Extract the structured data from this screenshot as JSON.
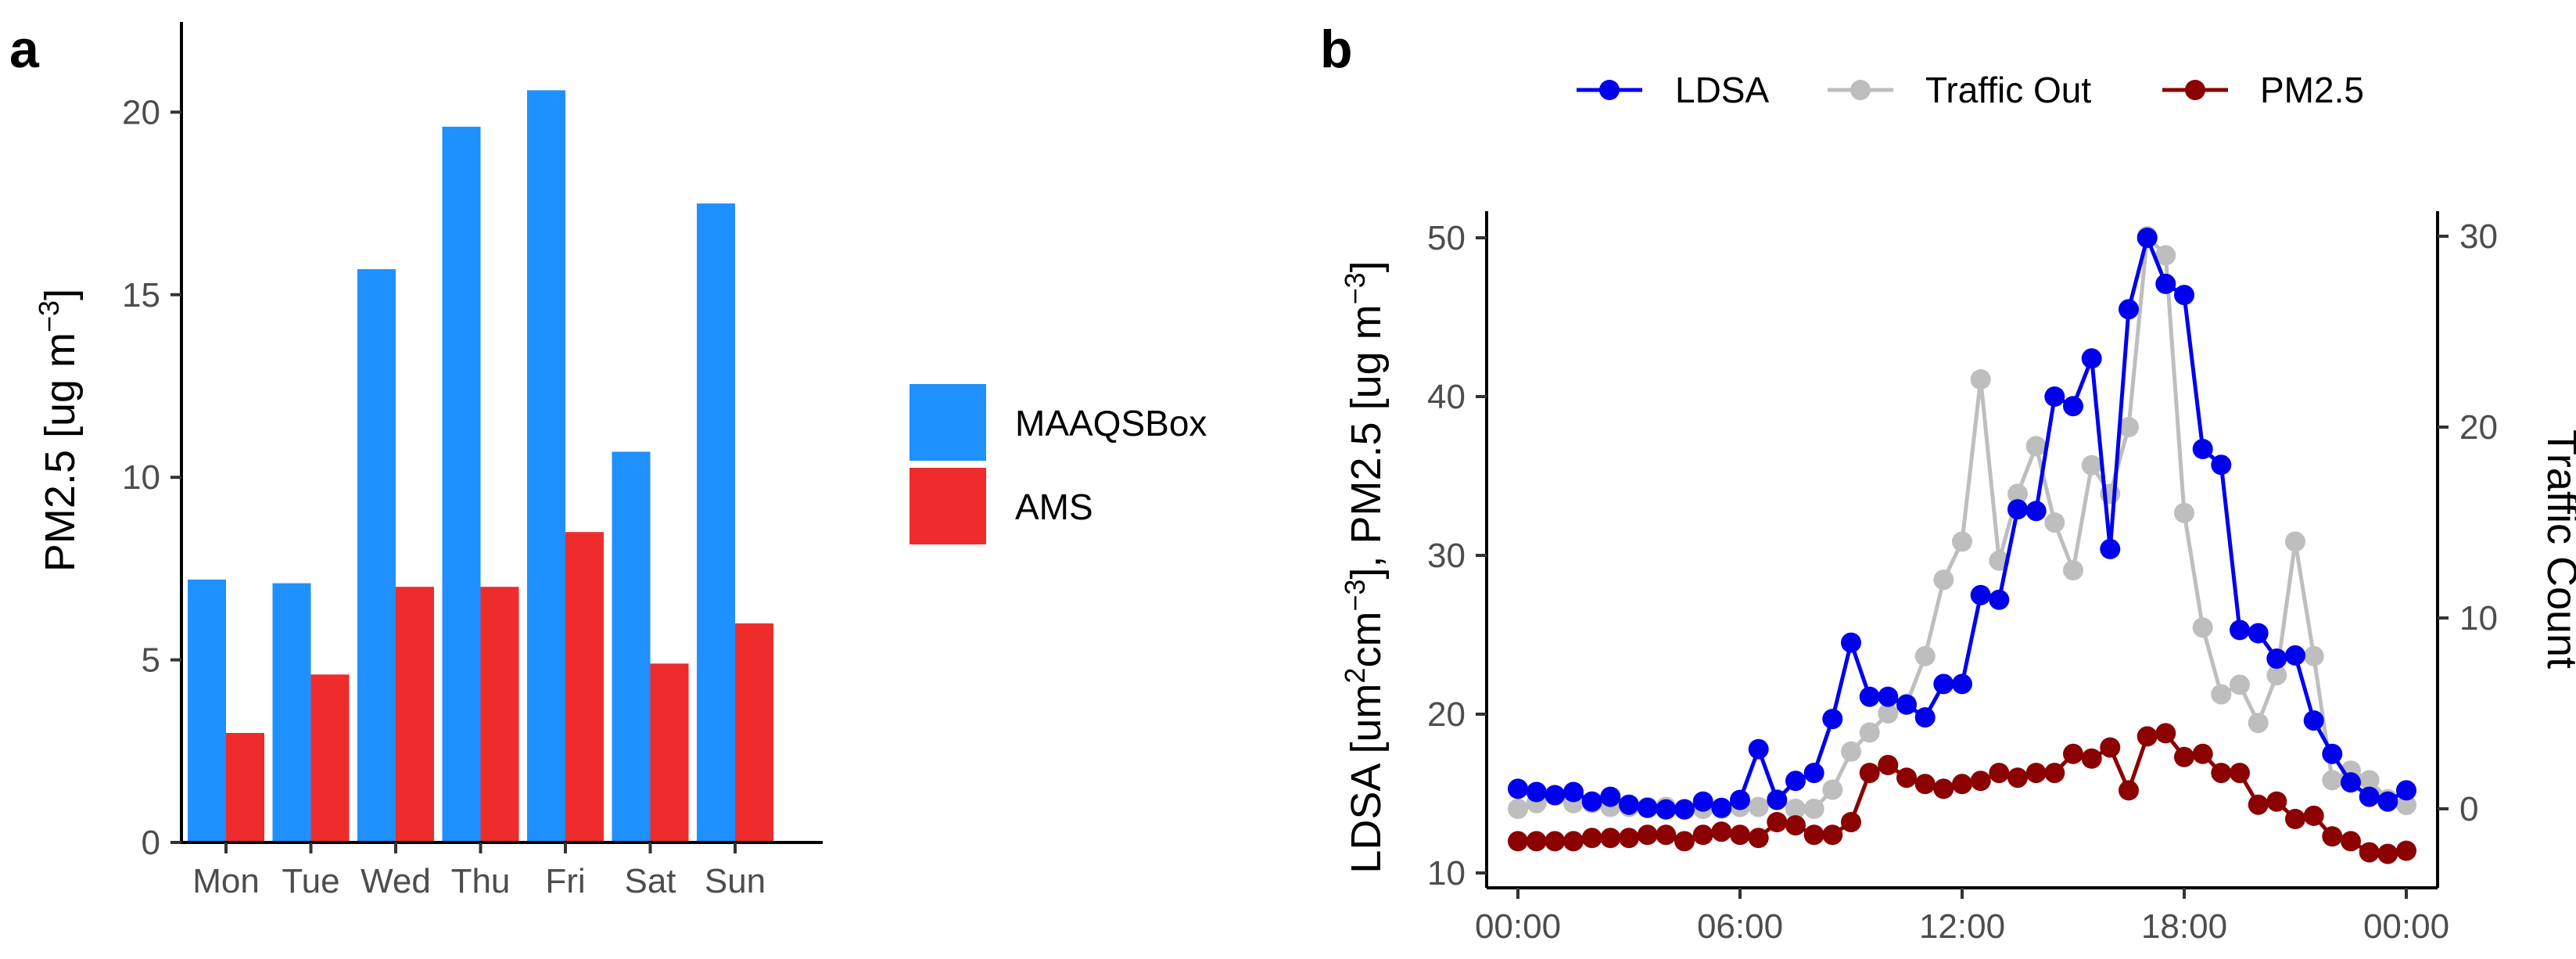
{
  "chart_data": [
    {
      "type": "bar",
      "panel_label": "a",
      "categories": [
        "Mon",
        "Tue",
        "Wed",
        "Thu",
        "Fri",
        "Sat",
        "Sun"
      ],
      "series": [
        {
          "name": "MAAQSBox",
          "color": "#1E90FF",
          "values": [
            7.2,
            7.1,
            15.7,
            19.6,
            20.6,
            10.7,
            17.5
          ]
        },
        {
          "name": "AMS",
          "color": "#EE2C2C",
          "values": [
            3.0,
            4.6,
            7.0,
            7.0,
            8.5,
            4.9,
            6.0
          ]
        }
      ],
      "ylabel": "PM2.5 [ug m",
      "ylabel_sup": "−3",
      "ylabel_end": "]",
      "yticks": [
        0,
        5,
        10,
        15,
        20
      ],
      "ylim": [
        0,
        21.5
      ],
      "legend_position": "right"
    },
    {
      "type": "line",
      "panel_label": "b",
      "x_labels": [
        "00:00",
        "06:00",
        "12:00",
        "18:00",
        "00:00"
      ],
      "x_ticks_hours": [
        0,
        6,
        12,
        18,
        24
      ],
      "xlim_hours": [
        0,
        24
      ],
      "y_left": {
        "label_parts": [
          "LDSA [um",
          "2",
          "cm",
          "−3",
          "],  PM2.5 [ug m",
          "−3",
          "]"
        ],
        "ticks": [
          10,
          20,
          30,
          40,
          50
        ],
        "lim": [
          9,
          51.5
        ]
      },
      "y_right": {
        "label": "Traffic Count",
        "ticks": [
          0,
          10,
          20,
          30
        ],
        "lim": [
          -3.5,
          31.5
        ]
      },
      "series": [
        {
          "name": "LDSA",
          "color": "#0000EE",
          "axis": "left",
          "values": [
            15.3,
            15.1,
            14.9,
            15.1,
            14.5,
            14.8,
            14.3,
            14.1,
            14.0,
            14.0,
            14.5,
            14.1,
            14.6,
            17.8,
            14.6,
            15.8,
            16.3,
            19.7,
            24.5,
            21.1,
            21.1,
            20.6,
            19.8,
            21.9,
            21.9,
            27.5,
            27.2,
            32.9,
            32.8,
            40.0,
            39.4,
            42.4,
            30.4,
            45.5,
            50.0,
            47.1,
            46.4,
            36.7,
            35.7,
            25.3,
            25.1,
            23.5,
            23.7,
            19.6,
            17.5,
            15.7,
            14.8,
            14.5,
            15.2
          ]
        },
        {
          "name": "Traffic Out",
          "color": "#BEBEBE",
          "axis": "right",
          "values": [
            0,
            0.3,
            0.7,
            0.3,
            0.3,
            0.1,
            0.1,
            0.1,
            0.1,
            0,
            0,
            0,
            0.1,
            0.1,
            0.5,
            0,
            0,
            1.0,
            3.0,
            4.0,
            5.0,
            5.5,
            8.0,
            12.0,
            14.0,
            22.5,
            13.0,
            16.5,
            19.0,
            15.0,
            12.5,
            18.0,
            16.5,
            20.0,
            30.0,
            29.0,
            15.5,
            9.5,
            6.0,
            6.5,
            4.5,
            7.0,
            14.0,
            8.0,
            1.5,
            2.0,
            1.5,
            0.5,
            0.2
          ]
        },
        {
          "name": "PM2.5",
          "color": "#8B0000",
          "axis": "left",
          "values": [
            12.0,
            12.0,
            12.0,
            12.0,
            12.2,
            12.2,
            12.2,
            12.4,
            12.4,
            12.0,
            12.4,
            12.6,
            12.4,
            12.2,
            13.2,
            13.0,
            12.4,
            12.4,
            13.2,
            16.3,
            16.8,
            16.0,
            15.6,
            15.3,
            15.6,
            15.8,
            16.3,
            16.0,
            16.3,
            16.3,
            17.5,
            17.2,
            17.9,
            15.2,
            18.6,
            18.8,
            17.3,
            17.5,
            16.3,
            16.3,
            14.3,
            14.5,
            13.4,
            13.6,
            12.3,
            12.0,
            11.3,
            11.2,
            11.4
          ]
        }
      ],
      "legend_position": "top"
    }
  ]
}
